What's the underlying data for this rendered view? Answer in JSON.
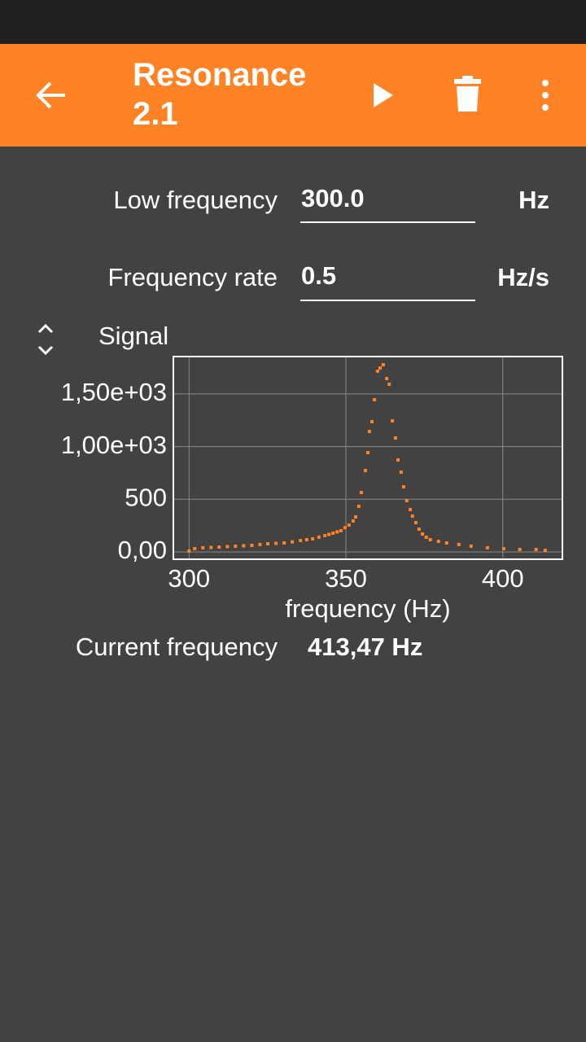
{
  "app_bar": {
    "title": "Resonance 2.1"
  },
  "fields": [
    {
      "label": "Low frequency",
      "value": "300.0",
      "unit": "Hz"
    },
    {
      "label": "Frequency rate",
      "value": "0.5",
      "unit": "Hz/s"
    }
  ],
  "chart_data": {
    "type": "scatter",
    "title": "Signal",
    "x_label": "frequency (Hz)",
    "x": [
      300,
      301.8,
      304.4,
      307,
      309.6,
      312.2,
      314.8,
      317.4,
      320,
      322.6,
      325.1,
      327.7,
      330.3,
      332.9,
      335.5,
      337.5,
      339.4,
      341.4,
      343.3,
      344.6,
      345.9,
      347.2,
      348.4,
      349.7,
      351,
      352.3,
      353.1,
      354.1,
      354.9,
      356.2,
      357,
      357.5,
      358.3,
      359.1,
      360.1,
      360.9,
      361.9,
      363,
      363.8,
      364.8,
      365.8,
      366.6,
      367.6,
      368.4,
      369.4,
      370.5,
      371.2,
      372.3,
      373.3,
      374.4,
      375.6,
      376.9,
      379.5,
      382.1,
      386,
      389.9,
      395.1,
      400.3,
      405.4,
      410.6,
      413.5
    ],
    "values": [
      8,
      31,
      39,
      42,
      46,
      50,
      54,
      58,
      62,
      70,
      77,
      81,
      85,
      95,
      108,
      116,
      124,
      140,
      155,
      166,
      178,
      190,
      201,
      230,
      255,
      294,
      332,
      433,
      564,
      773,
      943,
      1144,
      1236,
      1445,
      1716,
      1746,
      1777,
      1646,
      1592,
      1244,
      1082,
      873,
      757,
      618,
      487,
      402,
      340,
      278,
      216,
      170,
      139,
      116,
      100,
      85,
      70,
      54,
      39,
      31,
      23,
      23,
      15
    ],
    "color": "#ff8224",
    "xlim": [
      295,
      419
    ],
    "ylim": [
      -70,
      1855
    ],
    "xticks": [
      300,
      350,
      400
    ],
    "yticks": [
      {
        "value": 0,
        "label": "0,00"
      },
      500,
      {
        "value": 1000,
        "label": "1,00e+03"
      },
      {
        "value": 1500,
        "label": "1,50e+03"
      }
    ],
    "grid": true
  },
  "current": {
    "label": "Current frequency",
    "value": "413,47 Hz"
  }
}
